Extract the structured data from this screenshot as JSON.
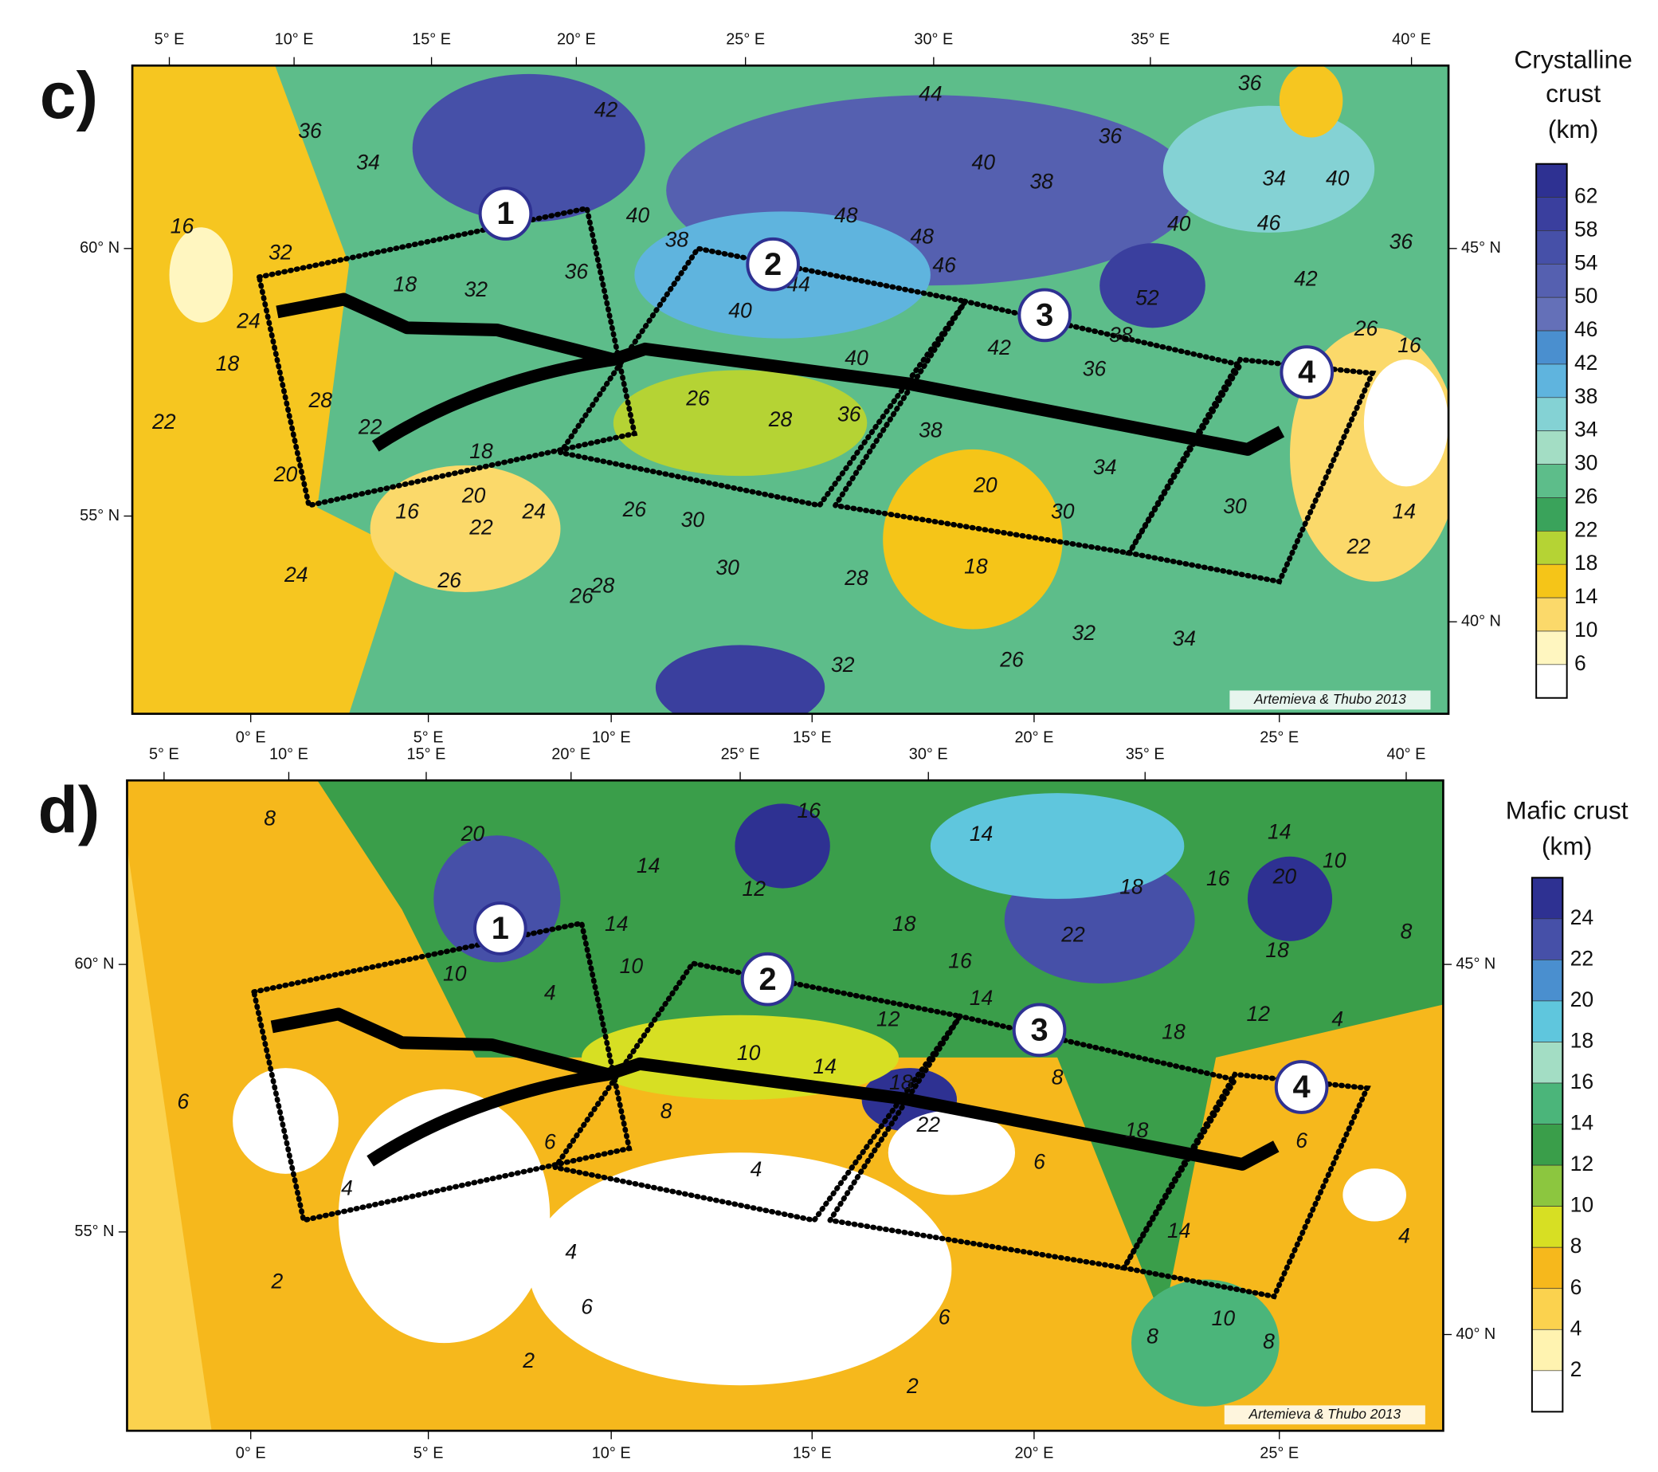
{
  "panels": [
    {
      "label": "c)",
      "top_ticks": [
        "5° E",
        "10° E",
        "15° E",
        "20° E",
        "25° E",
        "30° E",
        "35° E",
        "40° E"
      ],
      "bottom_ticks": [
        "0° E",
        "5° E",
        "10° E",
        "15° E",
        "20° E",
        "25° E"
      ],
      "left_ticks": [
        "60° N",
        "55° N"
      ],
      "right_ticks": [
        "45° N",
        "40° N"
      ],
      "legend": {
        "title": [
          "Crystalline",
          "crust",
          "(km)"
        ],
        "values": [
          62,
          58,
          54,
          50,
          46,
          42,
          38,
          34,
          30,
          26,
          22,
          18,
          14,
          10,
          6
        ],
        "colors": [
          "#2e3192",
          "#3a3f9e",
          "#4650a8",
          "#5560b0",
          "#6470b8",
          "#4a8fcf",
          "#5fb4de",
          "#84d2d4",
          "#a3ddc4",
          "#5dbd8a",
          "#3aa35b",
          "#b5d334",
          "#f5c518",
          "#fbd96a",
          "#fff6c0",
          "#ffffff"
        ]
      },
      "profiles": [
        "1",
        "2",
        "3",
        "4"
      ],
      "credit": "Artemieva & Thubo 2013",
      "contour_labels": [
        16,
        32,
        24,
        18,
        22,
        36,
        34,
        18,
        32,
        36,
        40,
        42,
        38,
        44,
        40,
        38,
        36,
        48,
        48,
        46,
        44,
        40,
        40,
        52,
        42,
        36,
        38,
        40,
        36,
        38,
        28,
        22,
        18,
        20,
        16,
        20,
        22,
        24,
        26,
        28,
        26,
        30,
        30,
        24,
        26,
        28,
        26,
        28,
        32,
        20,
        30,
        18,
        26,
        32,
        34,
        34,
        30,
        14,
        22,
        26,
        16,
        34,
        46,
        40,
        36,
        36,
        42
      ]
    },
    {
      "label": "d)",
      "top_ticks": [
        "5° E",
        "10° E",
        "15° E",
        "20° E",
        "25° E",
        "30° E",
        "35° E",
        "40° E"
      ],
      "bottom_ticks": [
        "0° E",
        "5° E",
        "10° E",
        "15° E",
        "20° E",
        "25° E"
      ],
      "left_ticks": [
        "60° N",
        "55° N"
      ],
      "right_ticks": [
        "45° N",
        "40° N"
      ],
      "legend": {
        "title": [
          "Mafic crust",
          "(km)"
        ],
        "values": [
          24,
          22,
          20,
          18,
          16,
          14,
          12,
          10,
          8,
          6,
          4,
          2
        ],
        "colors": [
          "#2e3192",
          "#4650a8",
          "#4a8fcf",
          "#5fc6dd",
          "#a3ddc4",
          "#4bb57a",
          "#3a9e4a",
          "#8cc63f",
          "#d7df23",
          "#f6b81c",
          "#fbd24e",
          "#fff3b0",
          "#ffffff"
        ]
      },
      "profiles": [
        "1",
        "2",
        "3",
        "4"
      ],
      "credit": "Artemieva & Thubo 2013",
      "contour_labels": [
        8,
        20,
        10,
        4,
        14,
        10,
        16,
        14,
        12,
        10,
        14,
        18,
        16,
        14,
        18,
        16,
        22,
        14,
        12,
        18,
        22,
        14,
        10,
        20,
        18,
        8,
        18,
        12,
        4,
        8,
        6,
        4,
        8,
        6,
        4,
        6,
        18,
        14,
        6,
        4,
        4,
        6,
        2,
        2,
        6,
        2,
        8,
        10,
        8
      ]
    }
  ]
}
